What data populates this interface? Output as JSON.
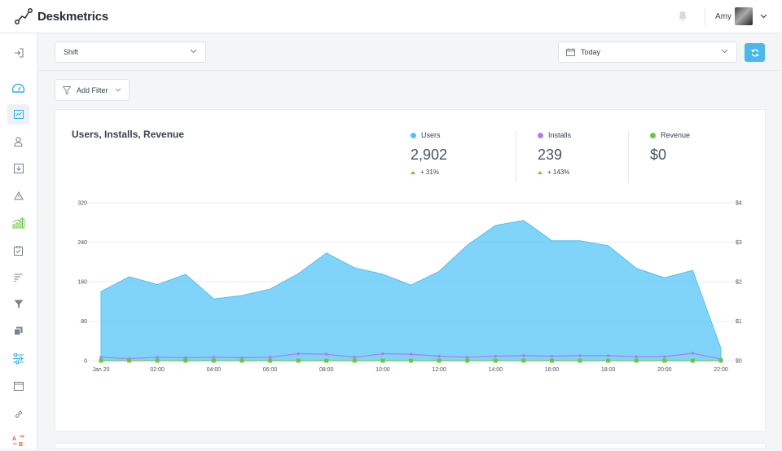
{
  "app": {
    "name": "Deskmetrics"
  },
  "header": {
    "user_name": "Amy"
  },
  "filters": {
    "segment": "Shift",
    "date_range": "Today",
    "add_filter_label": "Add Filter"
  },
  "card": {
    "title": "Users, Installs, Revenue",
    "kpis": [
      {
        "label": "Users",
        "value": "2,902",
        "change": "+ 31%",
        "color": "#4fc3f7"
      },
      {
        "label": "Installs",
        "value": "239",
        "change": "+ 143%",
        "color": "#b07ce8"
      },
      {
        "label": "Revenue",
        "value": "$0",
        "change": "",
        "color": "#6cc644"
      }
    ]
  },
  "chart_data": {
    "type": "area",
    "title": "Users, Installs, Revenue",
    "x": [
      "Jan 20",
      "01:00",
      "02:00",
      "03:00",
      "04:00",
      "05:00",
      "06:00",
      "07:00",
      "08:00",
      "09:00",
      "10:00",
      "11:00",
      "12:00",
      "13:00",
      "14:00",
      "15:00",
      "16:00",
      "17:00",
      "18:00",
      "19:00",
      "20:00",
      "21:00",
      "22:00"
    ],
    "x_tick_labels": [
      "Jan 20",
      "02:00",
      "04:00",
      "06:00",
      "08:00",
      "10:00",
      "12:00",
      "14:00",
      "16:00",
      "18:00",
      "20:00",
      "22:00"
    ],
    "y_left": {
      "min": 0,
      "max": 320,
      "ticks": [
        "320",
        "240",
        "160",
        "80",
        "0"
      ],
      "tick_values": [
        320,
        240,
        160,
        80,
        0
      ]
    },
    "y_right": {
      "min": 0,
      "max": 4,
      "ticks": [
        "$4",
        "$3",
        "$2",
        "$1",
        "$0"
      ],
      "tick_values": [
        4,
        3,
        2,
        1,
        0
      ]
    },
    "series": [
      {
        "name": "Users",
        "color": "#4fc3f7",
        "axis": "left",
        "values": [
          140,
          170,
          154,
          175,
          125,
          132,
          145,
          176,
          218,
          188,
          175,
          153,
          181,
          234,
          274,
          284,
          243,
          243,
          233,
          187,
          168,
          183,
          25
        ]
      },
      {
        "name": "Installs",
        "color": "#b07ce8",
        "axis": "left",
        "values": [
          7,
          4,
          7,
          6,
          7,
          6,
          7,
          14,
          13,
          7,
          14,
          13,
          9,
          7,
          9,
          10,
          9,
          10,
          10,
          8,
          8,
          15,
          3
        ]
      },
      {
        "name": "Revenue",
        "color": "#6cc644",
        "axis": "right",
        "values": [
          0,
          0,
          0,
          0,
          0,
          0,
          0,
          0,
          0,
          0,
          0,
          0,
          0,
          0,
          0,
          0,
          0,
          0,
          0,
          0,
          0,
          0,
          0
        ]
      }
    ],
    "grid": true
  }
}
